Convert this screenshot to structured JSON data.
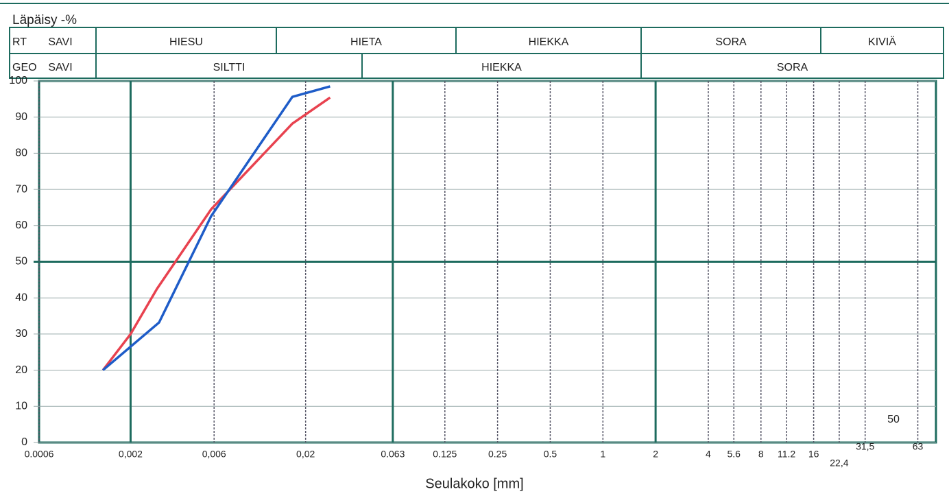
{
  "classification": {
    "rt": {
      "label": "RT",
      "classes": [
        "SAVI",
        "HIESU",
        "HIETA",
        "HIEKKA",
        "SORA",
        "KIVIÄ"
      ]
    },
    "geo": {
      "label": "GEO",
      "classes": [
        "SAVI",
        "SILTTI",
        "HIEKKA",
        "SORA"
      ]
    }
  },
  "chart_data": {
    "type": "line",
    "ylabel": "Läpäisy -%",
    "xlabel": "Seulakoko [mm]",
    "annotation": "50",
    "xscale": "log",
    "xlim": [
      0.0006,
      80
    ],
    "ylim": [
      0,
      100
    ],
    "yticks": [
      0,
      10,
      20,
      30,
      40,
      50,
      60,
      70,
      80,
      90,
      100
    ],
    "xticks": [
      0.0006,
      {
        "value": 0.002,
        "label": "0,002"
      },
      {
        "value": 0.006,
        "label": "0,006"
      },
      {
        "value": 0.02,
        "label": "0,02"
      },
      0.063,
      0.125,
      0.25,
      0.5,
      1,
      2,
      4,
      5.6,
      8,
      11.2,
      16,
      {
        "value": 22.4,
        "label": "22,4"
      },
      {
        "value": 31.5,
        "label": "31,5"
      },
      63
    ],
    "grid": true,
    "series": [
      {
        "name": null,
        "color": "#e8424f",
        "x": [
          0.00139,
          0.002,
          0.00283,
          0.00577,
          0.0168,
          0.0276
        ],
        "values": [
          20,
          30,
          42.5,
          64.5,
          88.2,
          95.4
        ]
      },
      {
        "name": null,
        "color": "#1e5cc8",
        "x": [
          0.00139,
          0.002,
          0.00291,
          0.00577,
          0.0168,
          0.0276
        ],
        "values": [
          20,
          26.5,
          33.2,
          62.6,
          95.6,
          98.5
        ]
      }
    ]
  }
}
